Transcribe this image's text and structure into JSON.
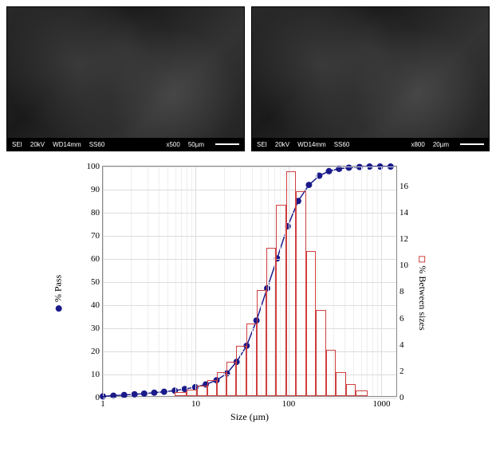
{
  "sem_left": {
    "labels": [
      "SEI",
      "20kV",
      "WD14mm",
      "SS60",
      "x500",
      "50µm"
    ]
  },
  "sem_right": {
    "labels": [
      "SEI",
      "20kV",
      "WD14mm",
      "SS60",
      "x800",
      "20µm"
    ]
  },
  "chart": {
    "type": "combo-line-bar",
    "xscale": "log",
    "xlim": [
      1,
      1500
    ],
    "xticks": [
      1,
      10,
      100,
      1000
    ],
    "ylim_left": [
      0,
      100
    ],
    "ytick_step_left": 10,
    "ylim_right": [
      0,
      17.5
    ],
    "ytick_step_right": 2,
    "xlabel": "Size (µm)",
    "legend_left": "% Pass",
    "legend_right": "% Between sizes",
    "line_color": "#1a1a8a",
    "marker_color": "#1a1a8a",
    "bar_border": "#d04040",
    "background": "#ffffff",
    "grid_color": "#dddddd",
    "line": {
      "x": [
        1,
        1.3,
        1.7,
        2.2,
        2.8,
        3.6,
        4.6,
        6,
        7.7,
        10,
        13,
        17,
        22,
        28,
        36,
        46,
        60,
        77,
        100,
        130,
        170,
        220,
        280,
        360,
        460,
        600,
        770,
        1000,
        1300
      ],
      "y": [
        0,
        0.3,
        0.6,
        0.9,
        1.2,
        1.6,
        2,
        2.5,
        3.2,
        4,
        5.2,
        7,
        10,
        15,
        22,
        33,
        47,
        60,
        74,
        85,
        92,
        96,
        98,
        99,
        99.5,
        99.8,
        100,
        100,
        100
      ]
    },
    "bars": {
      "x": [
        7,
        9,
        12,
        15,
        19,
        24,
        31,
        40,
        51,
        65,
        83,
        106,
        136,
        174,
        223,
        285,
        365,
        467,
        598
      ],
      "y": [
        0.3,
        0.5,
        0.8,
        1.2,
        1.8,
        2.6,
        3.8,
        5.5,
        8,
        11.2,
        14.5,
        17,
        15.5,
        11,
        6.5,
        3.5,
        1.8,
        0.9,
        0.4
      ]
    },
    "title_fontsize": 12,
    "label_fontsize": 12,
    "tick_fontsize": 11,
    "marker_size": 6,
    "line_width": 1.5,
    "bar_width_rel": 0.95
  }
}
